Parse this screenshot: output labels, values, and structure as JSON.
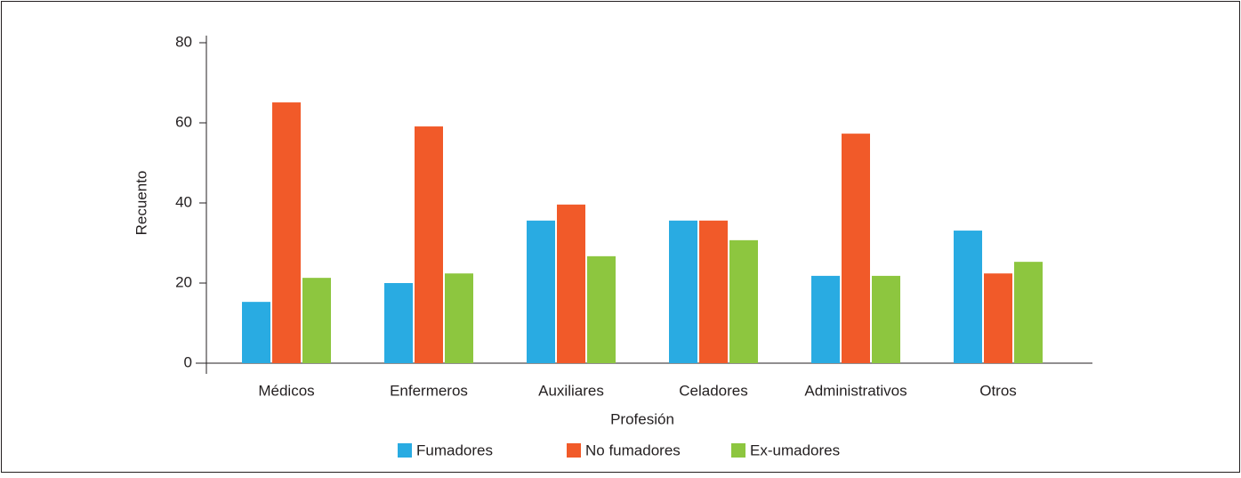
{
  "chart_data": {
    "type": "bar",
    "x_label": "Profesión",
    "y_label": "Recuento",
    "categories": [
      "Médicos",
      "Enfermeros",
      "Auxiliares",
      "Celadores",
      "Administrativos",
      "Otros"
    ],
    "series": [
      {
        "name": "Fumadores",
        "color": "#29abe2",
        "values": [
          15.3,
          20,
          35.6,
          35.6,
          21.8,
          33.1
        ]
      },
      {
        "name": "No fumadores",
        "color": "#f15a29",
        "values": [
          65.1,
          59.1,
          39.6,
          35.6,
          57.3,
          22.4
        ]
      },
      {
        "name": "Ex-umadores",
        "color": "#8dc63f",
        "values": [
          21.3,
          22.4,
          26.7,
          30.7,
          21.8,
          25.3
        ]
      }
    ],
    "ylim": [
      0,
      80
    ],
    "yticks": [
      0,
      20,
      40,
      60,
      80
    ],
    "grid": false,
    "legend": "bottom"
  }
}
